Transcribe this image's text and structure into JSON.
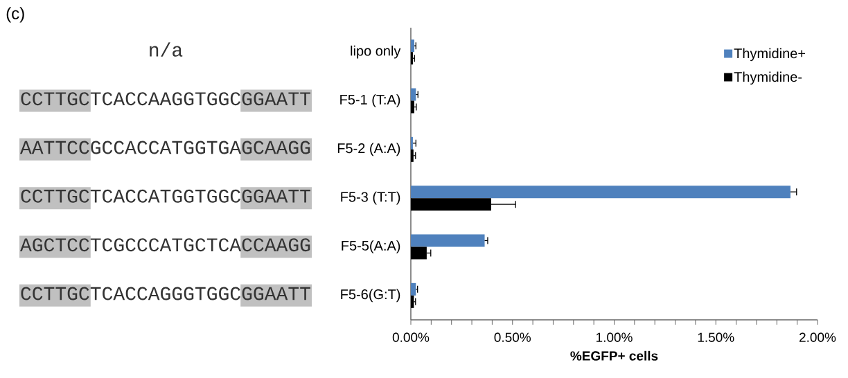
{
  "chart_data": {
    "type": "bar",
    "orientation": "horizontal",
    "categories": [
      "lipo only",
      "F5-1 (T:A)",
      "F5-2 (A:A)",
      "F5-3 (T:T)",
      "F5-5(A:A)",
      "F5-6(G:T)"
    ],
    "series": [
      {
        "name": "Thymidine+",
        "color": "#4f81bd",
        "values": [
          0.017,
          0.025,
          0.01,
          1.867,
          0.363,
          0.025
        ],
        "errors": [
          0.008,
          0.01,
          0.015,
          0.03,
          0.015,
          0.008
        ]
      },
      {
        "name": "Thymidine-",
        "color": "#000000",
        "values": [
          0.01,
          0.017,
          0.013,
          0.395,
          0.078,
          0.015
        ],
        "errors": [
          0.008,
          0.01,
          0.01,
          0.12,
          0.02,
          0.008
        ]
      }
    ],
    "xlabel": "%EGFP+ cells",
    "xlim": [
      0,
      2
    ],
    "xticks": [
      {
        "value": 0,
        "label": "0.00%"
      },
      {
        "value": 0.1,
        "label": null
      },
      {
        "value": 0.2,
        "label": null
      },
      {
        "value": 0.3,
        "label": null
      },
      {
        "value": 0.4,
        "label": null
      },
      {
        "value": 0.5,
        "label": "0.50%"
      },
      {
        "value": 0.6,
        "label": null
      },
      {
        "value": 0.7,
        "label": null
      },
      {
        "value": 0.8,
        "label": null
      },
      {
        "value": 0.9,
        "label": null
      },
      {
        "value": 1,
        "label": "1.00%"
      },
      {
        "value": 1.1,
        "label": null
      },
      {
        "value": 1.2,
        "label": null
      },
      {
        "value": 1.3,
        "label": null
      },
      {
        "value": 1.4,
        "label": null
      },
      {
        "value": 1.5,
        "label": "1.50%"
      },
      {
        "value": 1.6,
        "label": null
      },
      {
        "value": 1.7,
        "label": null
      },
      {
        "value": 1.8,
        "label": null
      },
      {
        "value": 1.9,
        "label": null
      },
      {
        "value": 2,
        "label": "2.00%"
      }
    ],
    "legend": "top right",
    "annotations": [
      "(c)",
      "n/a",
      "CCTTGCTCACCAAGGTGGCGGAATT",
      "AATTCCGCCACCATGGTGAGCAAGG",
      "CCTTGCTCACCATGGTGGCGGAATT",
      "AGCTCCTCGCCCATGCTCACCAAGG",
      "CCTTGCTCACCAGGGTGGCGGAATT"
    ]
  }
}
